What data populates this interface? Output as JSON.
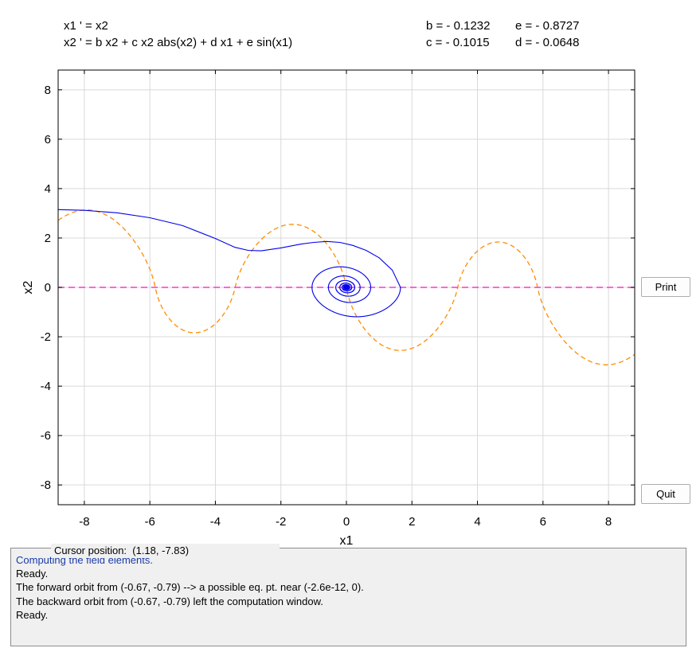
{
  "equations": {
    "line1": "x1 ' = x2",
    "line2": "x2 ' = b x2 + c x2 abs(x2) + d x1 + e sin(x1)"
  },
  "parameters": {
    "b": "b = - 0.1232",
    "c": "c = - 0.1015",
    "d": "d = - 0.0648",
    "e": "e = - 0.8727"
  },
  "buttons": {
    "print": "Print",
    "quit": "Quit"
  },
  "cursor_position": "Cursor position:  (1.18, -7.83)",
  "messages": [
    "Computing the field elements.",
    "Ready.",
    "The forward orbit from (-0.67, -0.79) --> a possible eq. pt. near (-2.6e-12, 0).",
    "The backward orbit from (-0.67, -0.79) left the computation window.",
    "Ready."
  ],
  "chart_data": {
    "type": "line",
    "xlabel": "x1",
    "ylabel": "x2",
    "xlim": [
      -8.8,
      8.8
    ],
    "ylim": [
      -8.8,
      8.8
    ],
    "xticks": [
      -8,
      -6,
      -4,
      -2,
      0,
      2,
      4,
      6,
      8
    ],
    "yticks": [
      -8,
      -6,
      -4,
      -2,
      0,
      2,
      4,
      6,
      8
    ],
    "grid": true,
    "colors": {
      "orbit": "#0000ee",
      "nullcline_x1": "#ff33cc",
      "nullcline_x2": "#ff8c00",
      "grid": "#d9d9d9"
    },
    "parameters": {
      "b": -0.1232,
      "c": -0.1015,
      "d": -0.0648,
      "e": -0.8727
    },
    "series": [
      {
        "style": "solid",
        "x": [
          -8.8,
          -8.0,
          -7.0,
          -6.0,
          -5.0,
          -4.0,
          -3.4,
          -3.0,
          -2.6,
          -2.0,
          -1.4,
          -1.0,
          -0.6,
          -0.2,
          0.2,
          0.6,
          1.0,
          1.4,
          1.65
        ],
        "y": [
          3.15,
          3.12,
          3.02,
          2.82,
          2.5,
          1.98,
          1.62,
          1.5,
          1.48,
          1.6,
          1.75,
          1.82,
          1.86,
          1.82,
          1.7,
          1.5,
          1.2,
          0.7,
          0.0
        ]
      },
      {
        "style": "dashed",
        "x": [
          0
        ],
        "y": [
          0
        ]
      },
      {
        "style": "dashed",
        "x": [
          -8.8,
          8.8
        ],
        "y": [
          0,
          0
        ]
      }
    ]
  }
}
